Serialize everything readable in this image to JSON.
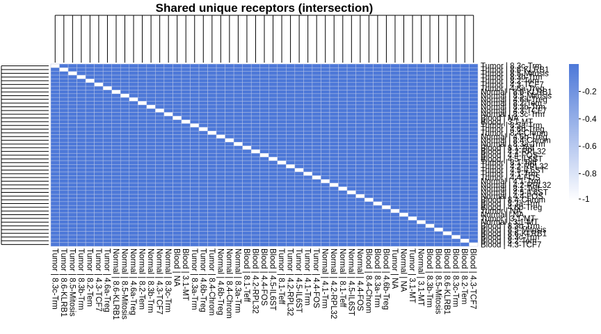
{
  "chart_data": {
    "type": "heatmap",
    "title": "Shared unique receptors (intersection)",
    "xlabel": "",
    "ylabel": "",
    "labels": [
      "Tumor | 8.3c-Trm",
      "Tumor | 8.6-KLRB1",
      "Tumor | 8.5-Mitosis",
      "Tumor | 8.3b-Trm",
      "Tumor | 8.2-Tem",
      "Tumor | 4.3-TCF7",
      "Tumor | 4.6a-Treg",
      "Normal | 8.6-KLRB1",
      "Normal | 8.5-Mitosis",
      "Normal | 4.6a-Treg",
      "Normal | 8.2-Tem",
      "Normal | 8.3b-Trm",
      "Normal | 4.3-TCF7",
      "Normal | 8.3c-Trm",
      "Blood | NA",
      "Blood | 3.1-MT",
      "Tumor | 8.3a-Trm",
      "Tumor | 4.6b-Treg",
      "Tumor | 8.4-Chrom",
      "Normal | 4.6b-Treg",
      "Normal | 8.4-Chrom",
      "Normal | 8.3a-Trm",
      "Blood | 8.1-Teff",
      "Blood | 4.2-RPL32",
      "Blood | 4.4-FOS",
      "Blood | 4.5-IL6ST",
      "Tumor | 8.1-Teff",
      "Tumor | 4.2-RPL32",
      "Tumor | 4.5-IL6ST",
      "Tumor | 4.1-Trm",
      "Tumor | 4.4-FOS",
      "Normal | 4.1-Trm",
      "Normal | 4.2-RPL32",
      "Normal | 8.1-Teff",
      "Normal | 4.5-IL6ST",
      "Normal | 4.4-FOS",
      "Blood | 8.4-Chrom",
      "Blood | 8.3a-Trm",
      "Blood | 4.6b-Treg",
      "Tumor | NA",
      "Normal | NA",
      "Tumor | 3.1-MT",
      "Normal | 3.1-MT",
      "Blood | 8.3b-Trm",
      "Blood | 8.5-Mitosis",
      "Blood | 8.6-KLRB1",
      "Blood | 8.3c-Trm",
      "Blood | 8.2-Tem",
      "Blood | 4.3-TCF7"
    ],
    "diagonal_value": 0,
    "off_diagonal_value": 1,
    "legend": {
      "ticks": [
        "-0.2",
        "-0.4",
        "-0.6",
        "-0.8",
        "-1"
      ],
      "low_color": "#ffffff",
      "high_color": "#4d78d8",
      "placement": "right"
    },
    "grid": true
  }
}
